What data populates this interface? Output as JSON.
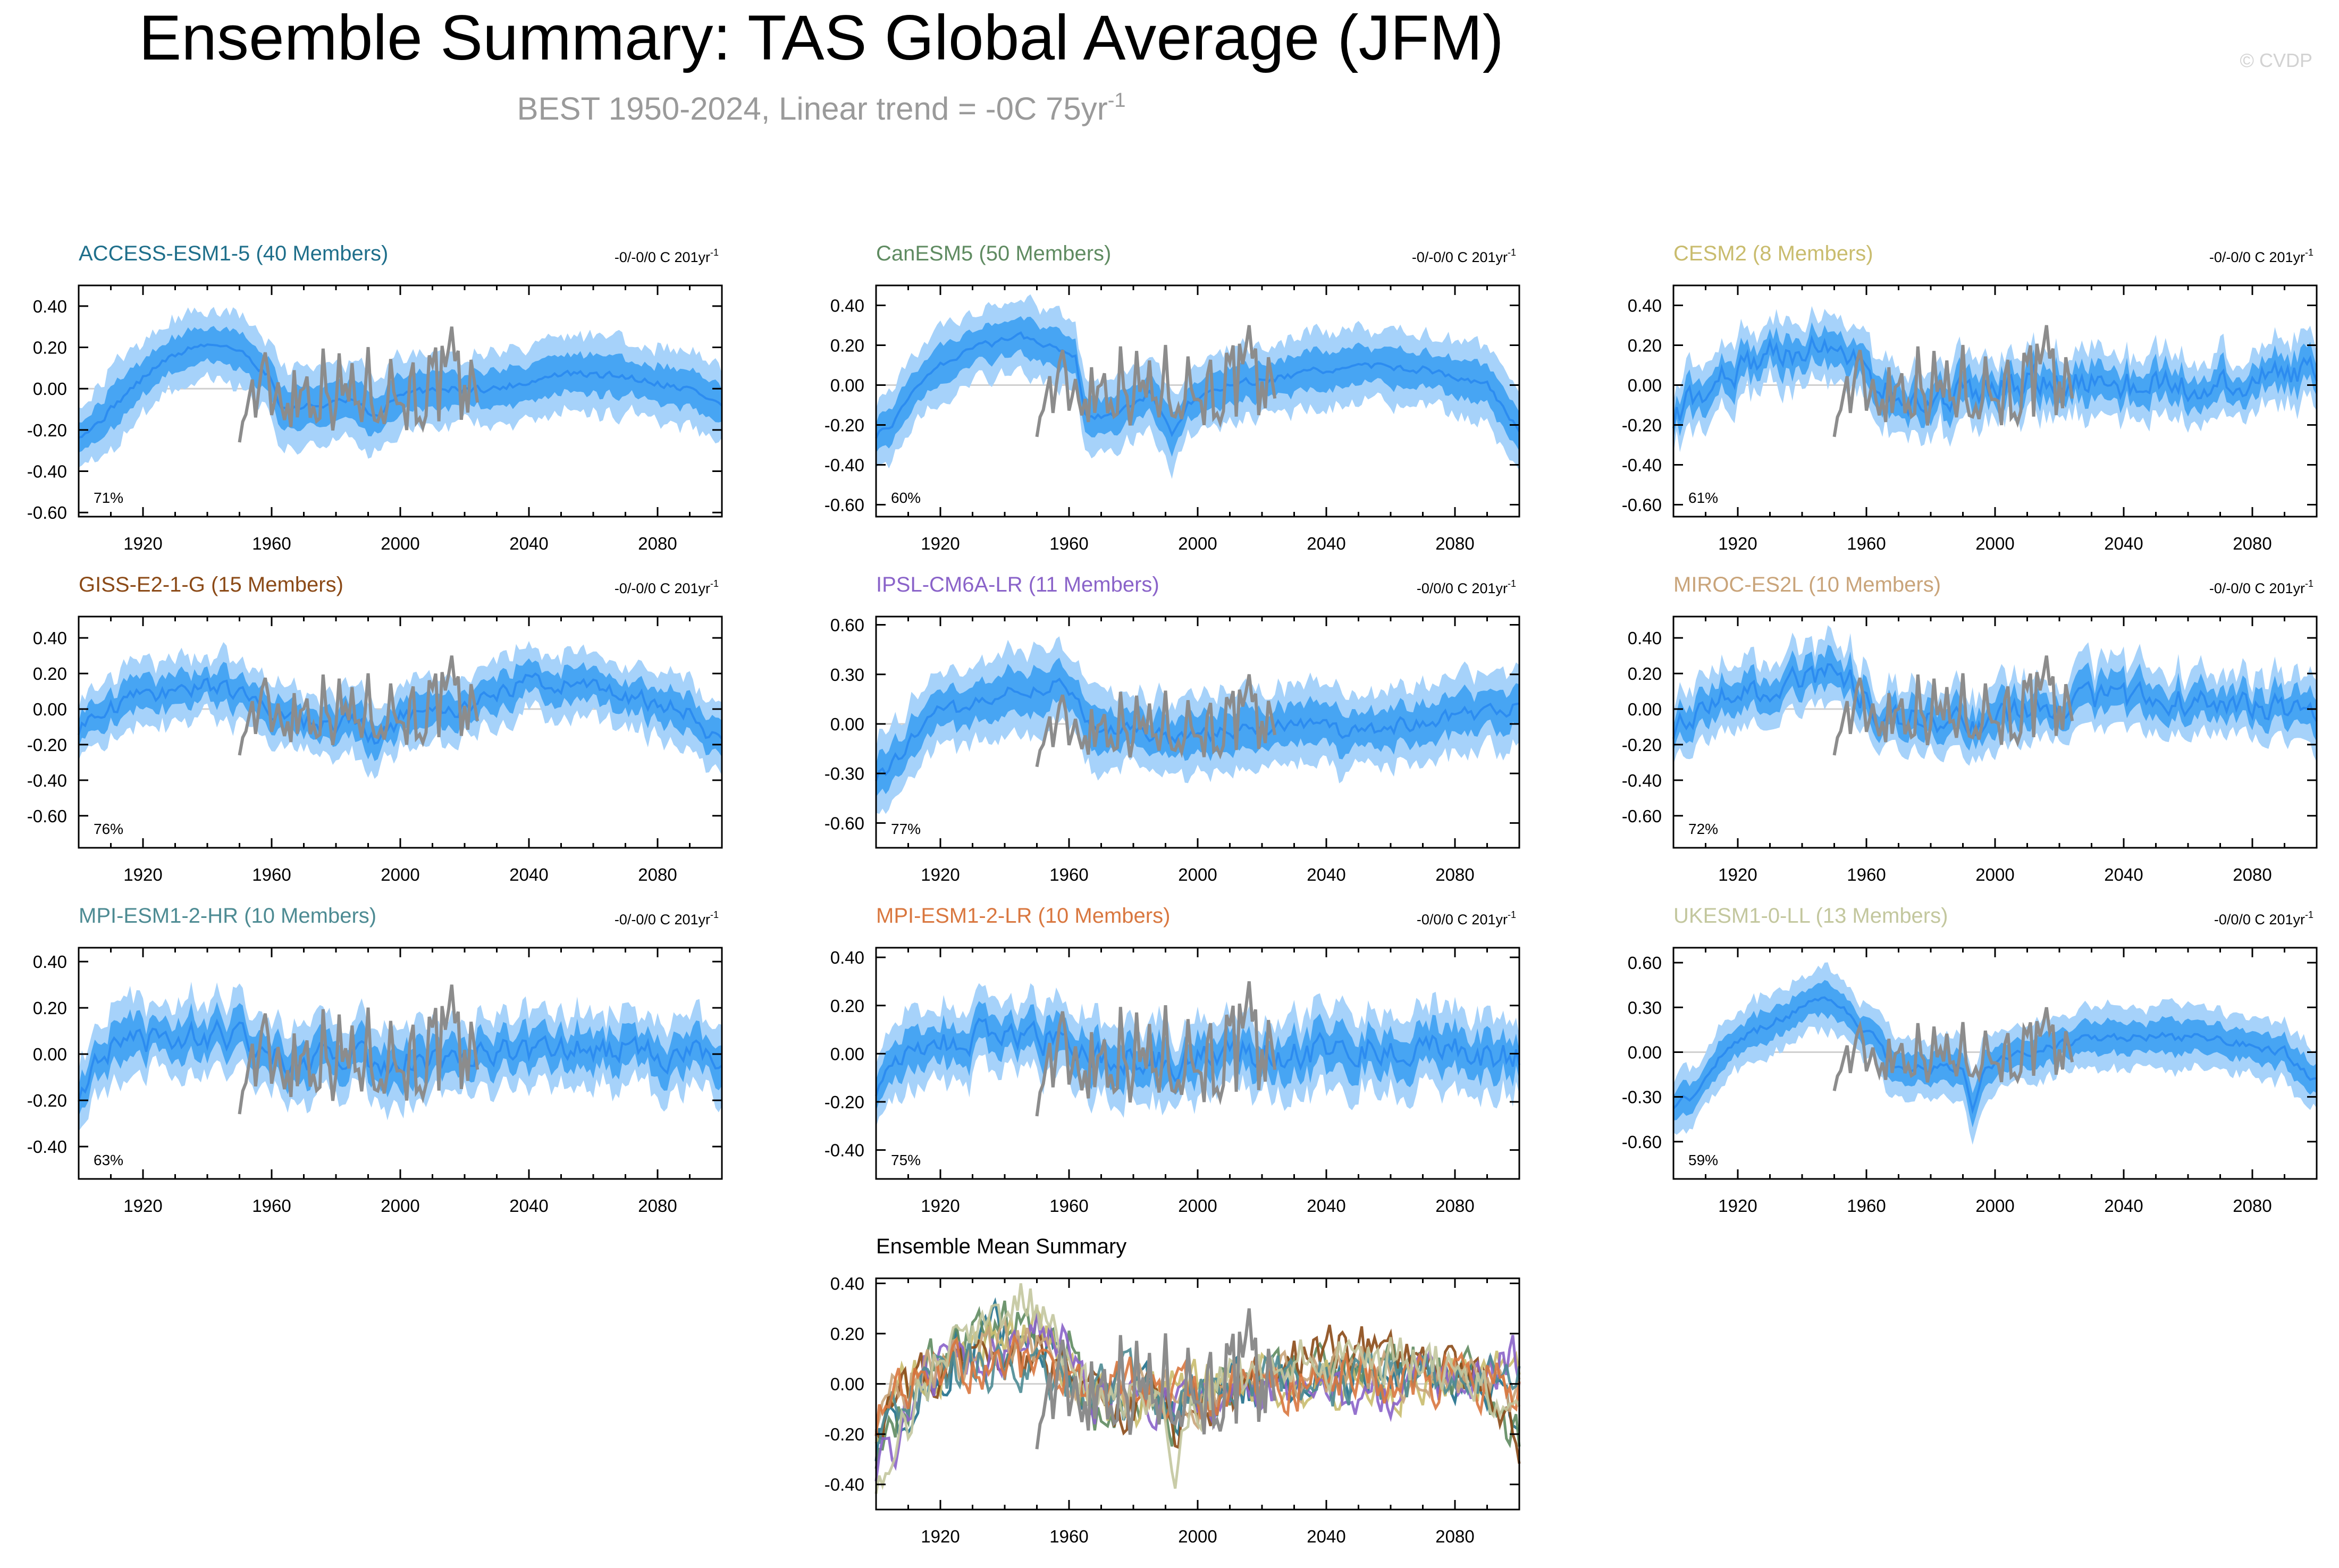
{
  "figure": {
    "title": "Ensemble Summary: TAS Global Average (JFM)",
    "subtitle_main": "BEST 1950-2024, Linear trend = -0C 75yr",
    "subtitle_sup": "-1",
    "copyright": "© CVDP"
  },
  "colors": {
    "band_outer": "#a6d2fa",
    "band_inner": "#47a5f3",
    "mean_line": "#2c8cf0",
    "obs_line": "#8c8c8c",
    "axis": "#000000",
    "zero_line": "#cfcfcf"
  },
  "chart_data": [
    {
      "type": "line",
      "name": "ACCESS-ESM1-5 (40 Members)",
      "title_color": "#1f6f8b",
      "trend_text": "-0/-0/0 C 201yr",
      "trend_sup": "-1",
      "pct_label": "71%",
      "x_range": [
        1900,
        2100
      ],
      "ylim": [
        -0.62,
        0.5
      ],
      "yticks": [
        0.4,
        0.2,
        0.0,
        -0.2,
        -0.4,
        -0.6
      ],
      "ytick_labels": [
        "0.40",
        "0.20",
        "0.00",
        "-0.20",
        "-0.40",
        "-0.60"
      ],
      "xticks": [
        1920,
        1960,
        2000,
        2040,
        2080
      ],
      "xtick_labels": [
        "1920",
        "1960",
        "2000",
        "2040",
        "2080"
      ],
      "mean_knots": [
        [
          1900,
          -0.22
        ],
        [
          1905,
          -0.18
        ],
        [
          1915,
          -0.02
        ],
        [
          1925,
          0.12
        ],
        [
          1935,
          0.2
        ],
        [
          1945,
          0.22
        ],
        [
          1953,
          0.15
        ],
        [
          1960,
          0.05
        ],
        [
          1963,
          -0.1
        ],
        [
          1975,
          -0.08
        ],
        [
          1985,
          -0.06
        ],
        [
          1993,
          -0.15
        ],
        [
          1997,
          -0.05
        ],
        [
          2010,
          0.0
        ],
        [
          2030,
          0.0
        ],
        [
          2050,
          0.07
        ],
        [
          2070,
          0.06
        ],
        [
          2090,
          0.0
        ],
        [
          2100,
          -0.08
        ]
      ],
      "inner_half": 0.09,
      "outer_half": 0.18,
      "noise": 0.03
    },
    {
      "type": "line",
      "name": "CanESM5 (50 Members)",
      "title_color": "#5f8b61",
      "trend_text": "-0/-0/0 C 201yr",
      "trend_sup": "-1",
      "pct_label": "60%",
      "x_range": [
        1900,
        2100
      ],
      "ylim": [
        -0.66,
        0.5
      ],
      "yticks": [
        0.4,
        0.2,
        0.0,
        -0.2,
        -0.4,
        -0.6
      ],
      "ytick_labels": [
        "0.40",
        "0.20",
        "0.00",
        "-0.20",
        "-0.40",
        "-0.60"
      ],
      "xticks": [
        1920,
        1960,
        2000,
        2040,
        2080
      ],
      "xtick_labels": [
        "1920",
        "1960",
        "2000",
        "2040",
        "2080"
      ],
      "mean_knots": [
        [
          1900,
          -0.25
        ],
        [
          1905,
          -0.2
        ],
        [
          1915,
          0.05
        ],
        [
          1925,
          0.15
        ],
        [
          1935,
          0.2
        ],
        [
          1945,
          0.25
        ],
        [
          1955,
          0.2
        ],
        [
          1962,
          0.15
        ],
        [
          1965,
          -0.15
        ],
        [
          1975,
          -0.15
        ],
        [
          1985,
          -0.05
        ],
        [
          1992,
          -0.25
        ],
        [
          1997,
          -0.1
        ],
        [
          2010,
          0.0
        ],
        [
          2030,
          0.05
        ],
        [
          2050,
          0.1
        ],
        [
          2070,
          0.08
        ],
        [
          2090,
          0.0
        ],
        [
          2100,
          -0.22
        ]
      ],
      "inner_half": 0.09,
      "outer_half": 0.18,
      "noise": 0.03
    },
    {
      "type": "line",
      "name": "CESM2 (8 Members)",
      "title_color": "#c9bc6e",
      "trend_text": "-0/-0/0 C 201yr",
      "trend_sup": "-1",
      "pct_label": "61%",
      "x_range": [
        1900,
        2100
      ],
      "ylim": [
        -0.66,
        0.5
      ],
      "yticks": [
        0.4,
        0.2,
        0.0,
        -0.2,
        -0.4,
        -0.6
      ],
      "ytick_labels": [
        "0.40",
        "0.20",
        "0.00",
        "-0.20",
        "-0.40",
        "-0.60"
      ],
      "xticks": [
        1920,
        1960,
        2000,
        2040,
        2080
      ],
      "xtick_labels": [
        "1920",
        "1960",
        "2000",
        "2040",
        "2080"
      ],
      "mean_knots": [
        [
          1900,
          -0.15
        ],
        [
          1915,
          0.05
        ],
        [
          1930,
          0.15
        ],
        [
          1945,
          0.2
        ],
        [
          1955,
          0.15
        ],
        [
          1962,
          0.0
        ],
        [
          1975,
          -0.1
        ],
        [
          1990,
          -0.05
        ],
        [
          2000,
          0.0
        ],
        [
          2020,
          0.02
        ],
        [
          2040,
          0.0
        ],
        [
          2060,
          -0.02
        ],
        [
          2080,
          0.02
        ],
        [
          2100,
          0.1
        ]
      ],
      "inner_half": 0.08,
      "outer_half": 0.16,
      "noise": 0.12
    },
    {
      "type": "line",
      "name": "GISS-E2-1-G (15 Members)",
      "title_color": "#8b4a17",
      "trend_text": "-0/-0/0 C 201yr",
      "trend_sup": "-1",
      "pct_label": "76%",
      "x_range": [
        1900,
        2100
      ],
      "ylim": [
        -0.78,
        0.52
      ],
      "yticks": [
        0.4,
        0.2,
        0.0,
        -0.2,
        -0.4,
        -0.6
      ],
      "ytick_labels": [
        "0.40",
        "0.20",
        "0.00",
        "-0.20",
        "-0.40",
        "-0.60"
      ],
      "xticks": [
        1920,
        1960,
        2000,
        2040,
        2080
      ],
      "xtick_labels": [
        "1920",
        "1960",
        "2000",
        "2040",
        "2080"
      ],
      "mean_knots": [
        [
          1900,
          -0.1
        ],
        [
          1915,
          0.05
        ],
        [
          1930,
          0.12
        ],
        [
          1945,
          0.12
        ],
        [
          1955,
          0.05
        ],
        [
          1965,
          -0.05
        ],
        [
          1975,
          -0.1
        ],
        [
          1985,
          -0.05
        ],
        [
          1993,
          -0.2
        ],
        [
          2000,
          -0.05
        ],
        [
          2010,
          -0.05
        ],
        [
          2025,
          0.05
        ],
        [
          2040,
          0.15
        ],
        [
          2060,
          0.12
        ],
        [
          2075,
          0.05
        ],
        [
          2090,
          0.0
        ],
        [
          2100,
          -0.22
        ]
      ],
      "inner_half": 0.09,
      "outer_half": 0.18,
      "noise": 0.08
    },
    {
      "type": "line",
      "name": "IPSL-CM6A-LR (11 Members)",
      "title_color": "#8a63c9",
      "trend_text": "-0/0/0 C 201yr",
      "trend_sup": "-1",
      "pct_label": "77%",
      "x_range": [
        1900,
        2100
      ],
      "ylim": [
        -0.75,
        0.65
      ],
      "yticks": [
        0.6,
        0.3,
        0.0,
        -0.3,
        -0.6
      ],
      "ytick_labels": [
        "0.60",
        "0.30",
        "0.00",
        "-0.30",
        "-0.60"
      ],
      "xticks": [
        1920,
        1960,
        2000,
        2040,
        2080
      ],
      "xtick_labels": [
        "1920",
        "1960",
        "2000",
        "2040",
        "2080"
      ],
      "mean_knots": [
        [
          1900,
          -0.3
        ],
        [
          1905,
          -0.25
        ],
        [
          1915,
          0.05
        ],
        [
          1930,
          0.1
        ],
        [
          1945,
          0.2
        ],
        [
          1955,
          0.25
        ],
        [
          1962,
          0.15
        ],
        [
          1968,
          -0.05
        ],
        [
          1980,
          -0.05
        ],
        [
          1995,
          -0.1
        ],
        [
          2010,
          -0.05
        ],
        [
          2030,
          0.0
        ],
        [
          2050,
          -0.05
        ],
        [
          2070,
          0.0
        ],
        [
          2085,
          0.05
        ],
        [
          2100,
          0.1
        ]
      ],
      "inner_half": 0.12,
      "outer_half": 0.24,
      "noise": 0.08
    },
    {
      "type": "line",
      "name": "MIROC-ES2L (10 Members)",
      "title_color": "#c9a47a",
      "trend_text": "-0/-0/0 C 201yr",
      "trend_sup": "-1",
      "pct_label": "72%",
      "x_range": [
        1900,
        2100
      ],
      "ylim": [
        -0.78,
        0.52
      ],
      "yticks": [
        0.4,
        0.2,
        0.0,
        -0.2,
        -0.4,
        -0.6
      ],
      "ytick_labels": [
        "0.40",
        "0.20",
        "0.00",
        "-0.20",
        "-0.40",
        "-0.60"
      ],
      "xticks": [
        1920,
        1960,
        2000,
        2040,
        2080
      ],
      "xtick_labels": [
        "1920",
        "1960",
        "2000",
        "2040",
        "2080"
      ],
      "mean_knots": [
        [
          1900,
          -0.1
        ],
        [
          1915,
          0.05
        ],
        [
          1930,
          0.12
        ],
        [
          1945,
          0.2
        ],
        [
          1955,
          0.15
        ],
        [
          1965,
          -0.05
        ],
        [
          1980,
          -0.05
        ],
        [
          1995,
          -0.1
        ],
        [
          2010,
          0.0
        ],
        [
          2030,
          0.05
        ],
        [
          2050,
          0.05
        ],
        [
          2070,
          0.05
        ],
        [
          2090,
          0.0
        ],
        [
          2100,
          -0.08
        ]
      ],
      "inner_half": 0.09,
      "outer_half": 0.18,
      "noise": 0.12
    },
    {
      "type": "line",
      "name": "MPI-ESM1-2-HR (10 Members)",
      "title_color": "#4d8b93",
      "trend_text": "-0/-0/0 C 201yr",
      "trend_sup": "-1",
      "pct_label": "63%",
      "x_range": [
        1900,
        2100
      ],
      "ylim": [
        -0.54,
        0.46
      ],
      "yticks": [
        0.4,
        0.2,
        0.0,
        -0.2,
        -0.4
      ],
      "ytick_labels": [
        "0.40",
        "0.20",
        "0.00",
        "-0.20",
        "-0.40"
      ],
      "xticks": [
        1920,
        1960,
        2000,
        2040,
        2080
      ],
      "xtick_labels": [
        "1920",
        "1960",
        "2000",
        "2040",
        "2080"
      ],
      "mean_knots": [
        [
          1900,
          -0.15
        ],
        [
          1910,
          0.0
        ],
        [
          1925,
          0.05
        ],
        [
          1940,
          0.08
        ],
        [
          1955,
          0.05
        ],
        [
          1965,
          -0.02
        ],
        [
          1980,
          0.0
        ],
        [
          1995,
          -0.05
        ],
        [
          2010,
          0.0
        ],
        [
          2030,
          0.0
        ],
        [
          2050,
          0.02
        ],
        [
          2070,
          0.02
        ],
        [
          2090,
          0.0
        ],
        [
          2100,
          0.0
        ]
      ],
      "inner_half": 0.08,
      "outer_half": 0.16,
      "noise": 0.1
    },
    {
      "type": "line",
      "name": "MPI-ESM1-2-LR (10 Members)",
      "title_color": "#d9773f",
      "trend_text": "-0/0/0 C 201yr",
      "trend_sup": "-1",
      "pct_label": "75%",
      "x_range": [
        1900,
        2100
      ],
      "ylim": [
        -0.52,
        0.44
      ],
      "yticks": [
        0.4,
        0.2,
        0.0,
        -0.2,
        -0.4
      ],
      "ytick_labels": [
        "0.40",
        "0.20",
        "0.00",
        "-0.20",
        "-0.40"
      ],
      "xticks": [
        1920,
        1960,
        2000,
        2040,
        2080
      ],
      "xtick_labels": [
        "1920",
        "1960",
        "2000",
        "2040",
        "2080"
      ],
      "mean_knots": [
        [
          1900,
          -0.12
        ],
        [
          1910,
          0.0
        ],
        [
          1925,
          0.05
        ],
        [
          1940,
          0.08
        ],
        [
          1955,
          0.05
        ],
        [
          1965,
          -0.02
        ],
        [
          1980,
          0.0
        ],
        [
          1995,
          -0.05
        ],
        [
          2010,
          0.0
        ],
        [
          2030,
          0.0
        ],
        [
          2050,
          0.02
        ],
        [
          2070,
          0.02
        ],
        [
          2090,
          0.0
        ],
        [
          2100,
          -0.02
        ]
      ],
      "inner_half": 0.08,
      "outer_half": 0.16,
      "noise": 0.1
    },
    {
      "type": "line",
      "name": "UKESM1-0-LL (13 Members)",
      "title_color": "#c3c79e",
      "trend_text": "-0/0/0 C 201yr",
      "trend_sup": "-1",
      "pct_label": "59%",
      "x_range": [
        1900,
        2100
      ],
      "ylim": [
        -0.85,
        0.7
      ],
      "yticks": [
        0.6,
        0.3,
        0.0,
        -0.3,
        -0.6
      ],
      "ytick_labels": [
        "0.60",
        "0.30",
        "0.00",
        "-0.30",
        "-0.60"
      ],
      "xticks": [
        1920,
        1960,
        2000,
        2040,
        2080
      ],
      "xtick_labels": [
        "1920",
        "1960",
        "2000",
        "2040",
        "2080"
      ],
      "mean_knots": [
        [
          1900,
          -0.35
        ],
        [
          1905,
          -0.3
        ],
        [
          1915,
          0.0
        ],
        [
          1930,
          0.2
        ],
        [
          1945,
          0.35
        ],
        [
          1955,
          0.25
        ],
        [
          1962,
          0.1
        ],
        [
          1968,
          -0.1
        ],
        [
          1980,
          -0.1
        ],
        [
          1990,
          -0.1
        ],
        [
          1993,
          -0.4
        ],
        [
          1997,
          -0.1
        ],
        [
          2010,
          0.0
        ],
        [
          2030,
          0.1
        ],
        [
          2050,
          0.1
        ],
        [
          2070,
          0.1
        ],
        [
          2090,
          0.0
        ],
        [
          2100,
          -0.2
        ]
      ],
      "inner_half": 0.1,
      "outer_half": 0.2,
      "noise": 0.05
    },
    {
      "type": "line",
      "name": "Ensemble Mean Summary",
      "title_color": "#000000",
      "pct_label": "",
      "x_range": [
        1900,
        2100
      ],
      "ylim": [
        -0.5,
        0.42
      ],
      "yticks": [
        0.4,
        0.2,
        0.0,
        -0.2,
        -0.4
      ],
      "ytick_labels": [
        "0.40",
        "0.20",
        "0.00",
        "-0.20",
        "-0.40"
      ],
      "xticks": [
        1920,
        1960,
        2000,
        2040,
        2080
      ],
      "xtick_labels": [
        "1920",
        "1960",
        "2000",
        "2040",
        "2080"
      ],
      "series_colors": [
        "#1f6f8b",
        "#5f8b61",
        "#c9bc6e",
        "#8b4a17",
        "#8a63c9",
        "#c9a47a",
        "#4d8b93",
        "#d9773f",
        "#c3c79e"
      ]
    }
  ]
}
